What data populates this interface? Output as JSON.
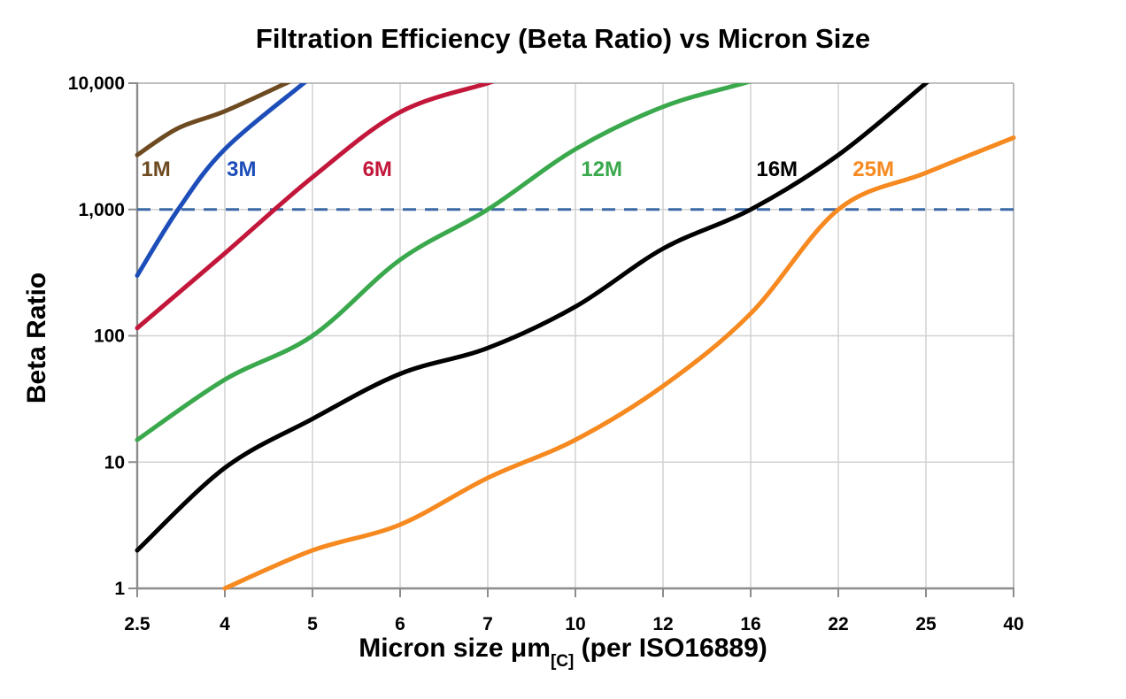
{
  "title": "Filtration Efficiency (Beta Ratio) vs Micron Size",
  "chart_data": {
    "type": "line",
    "title": "Filtration Efficiency (Beta Ratio) vs Micron Size",
    "xlabel": "Micron size μm[C] (per ISO16889)",
    "xlabel_parts": {
      "main": "Micron size μm",
      "sub": "[C]",
      "rest": " (per ISO16889)"
    },
    "ylabel": "Beta Ratio",
    "y_scale": "log",
    "ylim": [
      1,
      10000
    ],
    "grid": true,
    "categories": [
      2.5,
      4,
      5,
      6,
      7,
      10,
      12,
      16,
      22,
      25,
      40
    ],
    "x_tick_labels": [
      "2.5",
      "4",
      "5",
      "6",
      "7",
      "10",
      "12",
      "16",
      "22",
      "25",
      "40"
    ],
    "y_ticks": [
      1,
      10,
      100,
      1000,
      10000
    ],
    "y_tick_labels": [
      "1",
      "10",
      "100",
      "1,000",
      "10,000"
    ],
    "reference_line": {
      "y": 1000,
      "style": "dashed",
      "color": "#3a69a6"
    },
    "series": [
      {
        "name": "1M",
        "color": "#6e4a21",
        "label_pos": {
          "x": 2.82,
          "y": 2100
        },
        "points": [
          [
            2.5,
            2700
          ],
          [
            3.2,
            4400
          ],
          [
            4,
            6000
          ],
          [
            4.7,
            10000
          ]
        ]
      },
      {
        "name": "3M",
        "color": "#1d4db8",
        "label_pos": {
          "x": 4.19,
          "y": 2100
        },
        "points": [
          [
            2.5,
            300
          ],
          [
            3.2,
            1000
          ],
          [
            4,
            3000
          ],
          [
            4.9,
            10000
          ]
        ]
      },
      {
        "name": "6M",
        "color": "#c2173a",
        "label_pos": {
          "x": 5.74,
          "y": 2100
        },
        "points": [
          [
            2.5,
            115
          ],
          [
            4,
            450
          ],
          [
            5,
            1800
          ],
          [
            6,
            5900
          ],
          [
            7,
            10000
          ]
        ]
      },
      {
        "name": "12M",
        "color": "#3aa84c",
        "label_pos": {
          "x": 10.6,
          "y": 2100
        },
        "points": [
          [
            2.5,
            15
          ],
          [
            4,
            45
          ],
          [
            5,
            100
          ],
          [
            6,
            400
          ],
          [
            7,
            1000
          ],
          [
            10,
            3000
          ],
          [
            12,
            6500
          ],
          [
            15.7,
            10000
          ]
        ]
      },
      {
        "name": "16M",
        "color": "#000000",
        "label_pos": {
          "x": 17.8,
          "y": 2100
        },
        "points": [
          [
            2.5,
            2
          ],
          [
            4,
            9
          ],
          [
            5,
            22
          ],
          [
            6,
            50
          ],
          [
            7,
            80
          ],
          [
            10,
            170
          ],
          [
            12,
            490
          ],
          [
            16,
            1000
          ],
          [
            22,
            2700
          ],
          [
            25,
            10000
          ]
        ]
      },
      {
        "name": "25M",
        "color": "#f6891f",
        "label_pos": {
          "x": 23.2,
          "y": 2100
        },
        "points": [
          [
            4,
            1
          ],
          [
            5,
            2
          ],
          [
            6,
            3.2
          ],
          [
            7,
            7.5
          ],
          [
            10,
            15
          ],
          [
            12,
            40
          ],
          [
            16,
            150
          ],
          [
            22,
            1000
          ],
          [
            25,
            1950
          ],
          [
            40,
            3700
          ]
        ]
      }
    ],
    "colors": {
      "axis": "#8c8c8c",
      "grid": "#d2d2d2",
      "outer_border": "#a9a9a9",
      "tick_label": "#000000"
    }
  }
}
